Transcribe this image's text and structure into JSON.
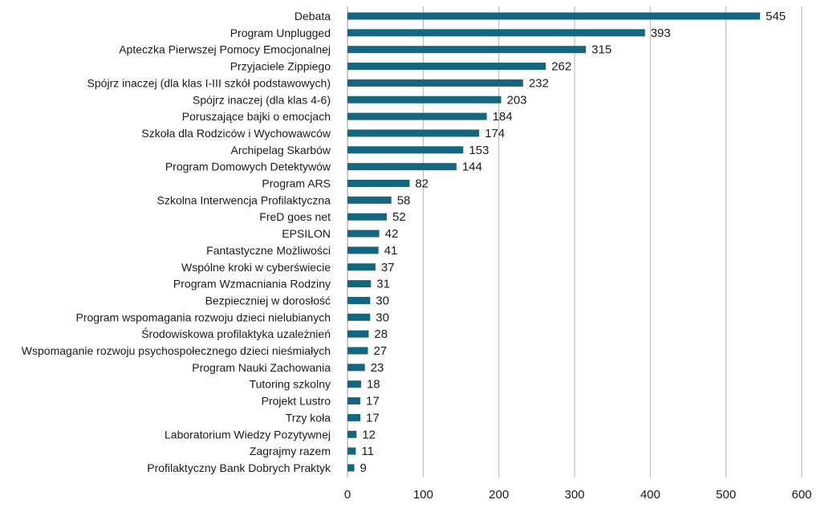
{
  "chart_data": {
    "type": "bar",
    "orientation": "horizontal",
    "title": "",
    "xlabel": "",
    "ylabel": "",
    "xlim": [
      0,
      600
    ],
    "x_ticks": [
      0,
      100,
      200,
      300,
      400,
      500,
      600
    ],
    "grid": "vertical",
    "legend": "none",
    "bar_color": "#14677f",
    "categories": [
      "Debata",
      "Program Unplugged",
      "Apteczka Pierwszej Pomocy Emocjonalnej",
      "Przyjaciele Zippiego",
      "Spójrz inaczej (dla klas I-III szkół podstawowych)",
      "Spójrz inaczej (dla klas 4-6)",
      "Poruszające bajki o emocjach",
      "Szkoła dla Rodziców i Wychowawców",
      "Archipelag Skarbów",
      "Program Domowych Detektywów",
      "Program ARS",
      "Szkolna Interwencja Profilaktyczna",
      "FreD goes net",
      "EPSILON",
      "Fantastyczne Możliwości",
      "Wspólne kroki w cyberświecie",
      "Program Wzmacniania Rodziny",
      "Bezpieczniej w dorosłość",
      "Program wspomagania rozwoju dzieci nielubianych",
      "Środowiskowa profilaktyka uzależnień",
      "Wspomaganie rozwoju psychospołecznego dzieci nieśmiałych",
      "Program Nauki Zachowania",
      "Tutoring szkolny",
      "Projekt Lustro",
      "Trzy koła",
      "Laboratorium Wiedzy Pozytywnej",
      "Zagrajmy razem",
      "Profilaktyczny Bank Dobrych Praktyk"
    ],
    "values": [
      545,
      393,
      315,
      262,
      232,
      203,
      184,
      174,
      153,
      144,
      82,
      58,
      52,
      42,
      41,
      37,
      31,
      30,
      30,
      28,
      27,
      23,
      18,
      17,
      17,
      12,
      11,
      9
    ]
  }
}
